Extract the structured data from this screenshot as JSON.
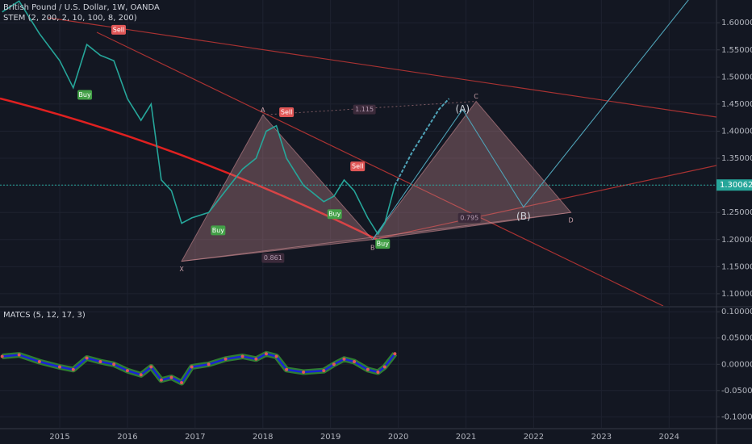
{
  "chart_data": [
    {
      "type": "line",
      "title": "British Pound / U.S. Dollar, 1W, OANDA",
      "subtitle": "STEM (2, 200, 2, 10, 100, 8, 200)",
      "x": [
        2014.15,
        2014.4,
        2014.7,
        2015.0,
        2015.2,
        2015.4,
        2015.6,
        2015.8,
        2016.0,
        2016.2,
        2016.35,
        2016.5,
        2016.65,
        2016.8,
        2016.95,
        2017.2,
        2017.45,
        2017.7,
        2017.9,
        2018.05,
        2018.2,
        2018.35,
        2018.6,
        2018.9,
        2019.05,
        2019.2,
        2019.35,
        2019.55,
        2019.7,
        2019.8,
        2019.95
      ],
      "series": [
        {
          "name": "GBPUSD",
          "color": "#26a69a",
          "values": [
            1.62,
            1.64,
            1.58,
            1.53,
            1.48,
            1.56,
            1.54,
            1.53,
            1.46,
            1.42,
            1.45,
            1.31,
            1.29,
            1.23,
            1.24,
            1.25,
            1.29,
            1.33,
            1.35,
            1.4,
            1.41,
            1.35,
            1.3,
            1.27,
            1.28,
            1.31,
            1.29,
            1.24,
            1.21,
            1.23,
            1.3
          ]
        }
      ],
      "projection": {
        "color": "#4fa3b8",
        "x": [
          2019.95,
          2020.2,
          2020.4,
          2020.6,
          2020.75
        ],
        "values": [
          1.3,
          1.36,
          1.4,
          1.44,
          1.46
        ]
      },
      "xlim": [
        2014.118,
        2024.7
      ],
      "ylim": [
        1.079,
        1.642
      ],
      "yticks": [
        {
          "value": 1.6,
          "label": "1.60000"
        },
        {
          "value": 1.55,
          "label": "1.55000"
        },
        {
          "value": 1.5,
          "label": "1.50000"
        },
        {
          "value": 1.45,
          "label": "1.45000"
        },
        {
          "value": 1.4,
          "label": "1.40000"
        },
        {
          "value": 1.35,
          "label": "1.35000"
        },
        {
          "value": 1.3,
          "label": "1.30000"
        },
        {
          "value": 1.25,
          "label": "1.25000"
        },
        {
          "value": 1.2,
          "label": "1.20000"
        },
        {
          "value": 1.15,
          "label": "1.15000"
        },
        {
          "value": 1.1,
          "label": "1.10000"
        }
      ],
      "last_price": 1.30062,
      "grid": true,
      "sell_color": "#e05757",
      "buy_color": "#43a047",
      "sell_signals": [
        {
          "label": "Sell",
          "x": 2015.87,
          "y": 1.587
        },
        {
          "label": "Sell",
          "x": 2018.35,
          "y": 1.435
        },
        {
          "label": "Sell",
          "x": 2019.4,
          "y": 1.335
        }
      ],
      "buy_signals": [
        {
          "label": "Buy",
          "x": 2015.37,
          "y": 1.467
        },
        {
          "label": "Buy",
          "x": 2017.34,
          "y": 1.217
        },
        {
          "label": "Buy",
          "x": 2019.06,
          "y": 1.247
        },
        {
          "label": "Buy",
          "x": 2019.77,
          "y": 1.192
        }
      ],
      "pattern": {
        "color": "#c9898f",
        "points": [
          {
            "label": "X",
            "x": 2016.8,
            "y": 1.16
          },
          {
            "label": "A",
            "x": 2018.0,
            "y": 1.43
          },
          {
            "label": "B",
            "x": 2019.62,
            "y": 1.2
          },
          {
            "label": "C",
            "x": 2021.15,
            "y": 1.455
          },
          {
            "label": "D",
            "x": 2022.55,
            "y": 1.25
          }
        ],
        "ratios": [
          {
            "value": 0.861,
            "x": 2018.15,
            "y": 1.166
          },
          {
            "value": 1.115,
            "x": 2019.5,
            "y": 1.44
          },
          {
            "value": 0.795,
            "x": 2021.05,
            "y": 1.24
          }
        ]
      },
      "wave": {
        "color": "#4fa3b8",
        "x": [
          2019.62,
          2020.95,
          2021.85,
          2024.4
        ],
        "y": [
          1.2,
          1.44,
          1.26,
          1.66
        ],
        "labels": [
          null,
          "(A)",
          "(B)",
          null
        ]
      }
    },
    {
      "type": "line",
      "title": "MATCS (5, 12, 17, 3)",
      "x": [
        2014.15,
        2014.4,
        2014.7,
        2015.0,
        2015.2,
        2015.4,
        2015.6,
        2015.8,
        2016.0,
        2016.2,
        2016.35,
        2016.5,
        2016.65,
        2016.8,
        2016.95,
        2017.2,
        2017.45,
        2017.7,
        2017.9,
        2018.05,
        2018.2,
        2018.35,
        2018.6,
        2018.9,
        2019.05,
        2019.2,
        2019.35,
        2019.55,
        2019.7,
        2019.8,
        2019.95
      ],
      "series": [
        {
          "name": "MATCS",
          "color": "#2e7d32",
          "values": [
            0.015,
            0.018,
            0.005,
            -0.005,
            -0.01,
            0.012,
            0.005,
            0.0,
            -0.012,
            -0.02,
            -0.005,
            -0.03,
            -0.025,
            -0.035,
            -0.005,
            0.0,
            0.01,
            0.015,
            0.01,
            0.02,
            0.015,
            -0.01,
            -0.015,
            -0.012,
            0.0,
            0.01,
            0.005,
            -0.01,
            -0.015,
            -0.005,
            0.02
          ]
        }
      ],
      "signal_color": "#1a22d6",
      "xlim": [
        2014.118,
        2024.7
      ],
      "ylim": [
        -0.121,
        0.108
      ],
      "yticks": [
        {
          "value": 0.1,
          "label": "0.10000"
        },
        {
          "value": 0.05,
          "label": "0.05000"
        },
        {
          "value": 0,
          "label": "0.00000"
        },
        {
          "value": -0.05,
          "label": "-0.05000"
        },
        {
          "value": -0.1,
          "label": "-0.10000"
        }
      ],
      "xticks": [
        2015,
        2016,
        2017,
        2018,
        2019,
        2020,
        2021,
        2022,
        2023,
        2024
      ],
      "grid": true
    }
  ]
}
